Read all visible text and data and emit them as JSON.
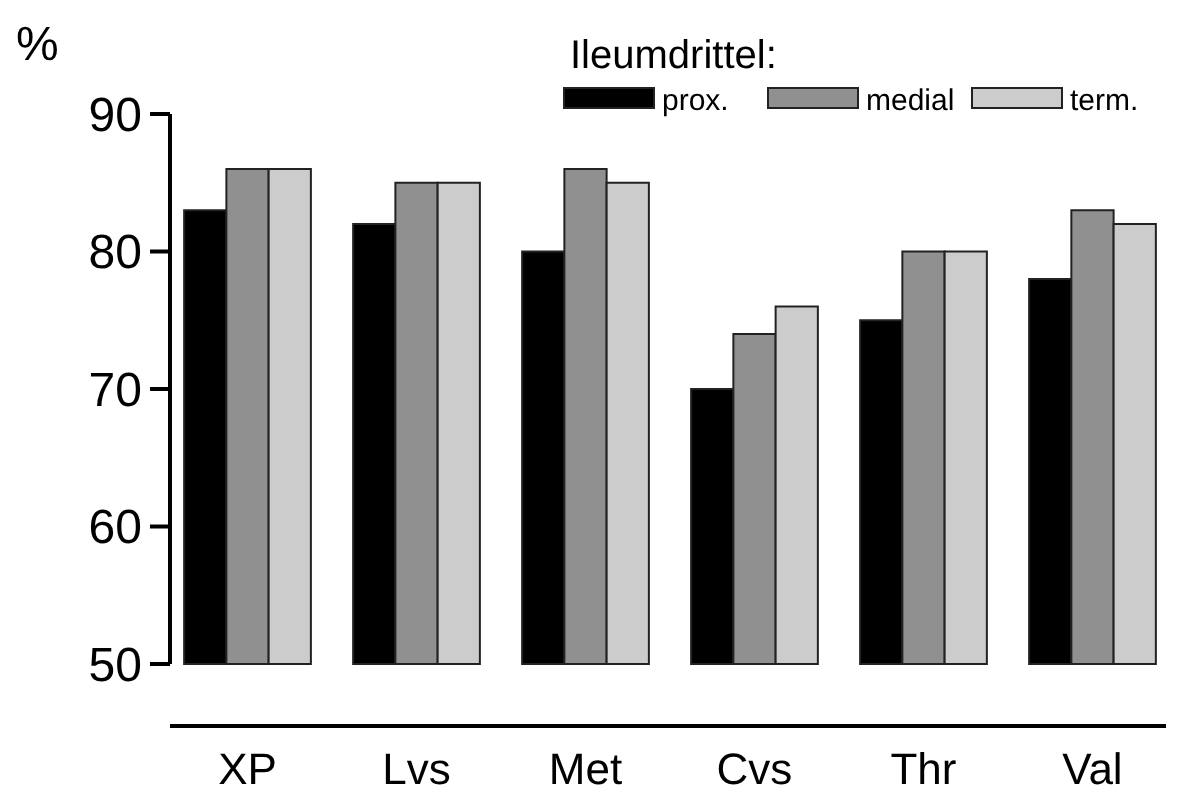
{
  "chart_data": {
    "type": "bar",
    "ylabel": "%",
    "legend_title": "Ileumdrittel:",
    "legend": "top right",
    "grid": false,
    "categories": [
      "XP",
      "Lvs",
      "Met",
      "Cvs",
      "Thr",
      "Val"
    ],
    "series": [
      {
        "name": "prox.",
        "color": "#000000",
        "values": [
          83,
          82,
          80,
          70,
          75,
          78
        ]
      },
      {
        "name": "medial",
        "color": "#909090",
        "values": [
          86,
          85,
          86,
          74,
          80,
          83
        ]
      },
      {
        "name": "term.",
        "color": "#cccccc",
        "values": [
          86,
          85,
          85,
          76,
          80,
          82
        ]
      }
    ],
    "ylim": [
      50,
      90
    ],
    "yticks": [
      50,
      60,
      70,
      80,
      90
    ]
  }
}
